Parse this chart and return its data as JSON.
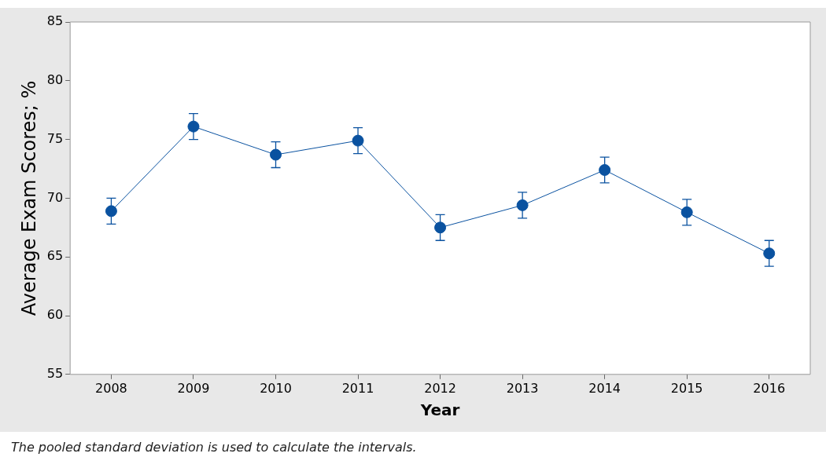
{
  "chart_data": {
    "type": "line",
    "xlabel": "Year",
    "ylabel": "Average Exam Scores; %",
    "categories": [
      "2008",
      "2009",
      "2010",
      "2011",
      "2012",
      "2013",
      "2014",
      "2015",
      "2016"
    ],
    "series": [
      {
        "color": "#0a52a0",
        "values": [
          68.9,
          76.1,
          73.7,
          74.9,
          67.5,
          69.4,
          72.4,
          68.8,
          65.3
        ],
        "errors": [
          1.1,
          1.1,
          1.1,
          1.1,
          1.1,
          1.1,
          1.1,
          1.1,
          1.1
        ]
      }
    ],
    "ylim": [
      55,
      85
    ],
    "yticks": [
      55,
      60,
      65,
      70,
      75,
      80,
      85
    ],
    "grid": false,
    "legend": false,
    "marker": "circle",
    "line_style": "solid",
    "annotations": [
      "The pooled standard deviation is used to calculate the intervals."
    ]
  }
}
